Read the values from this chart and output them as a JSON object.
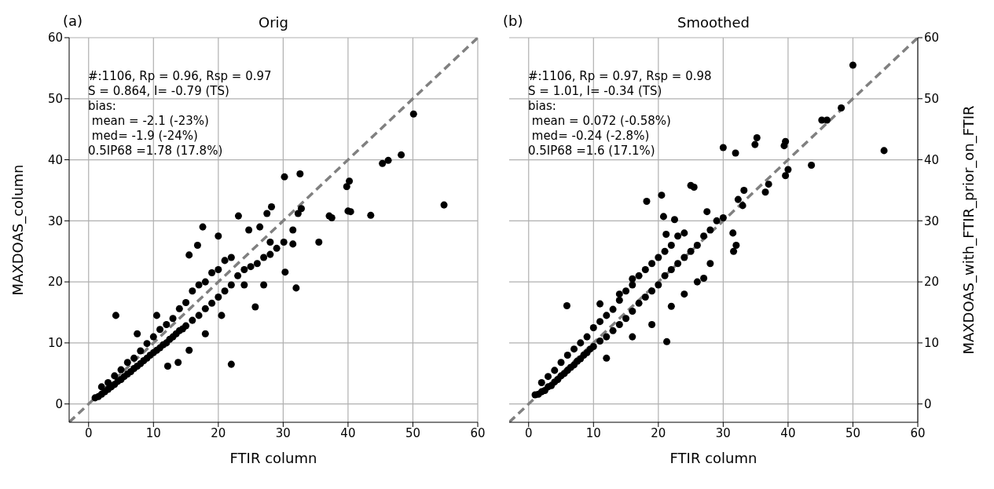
{
  "chart_data": [
    {
      "type": "scatter",
      "title": "Orig",
      "xlabel": "FTIR column",
      "ylabel": "MAXDOAS_column",
      "annotations": [
        "(a)",
        "#:1106, Rp = 0.96, Rsp = 0.97\nS = 0.864, I= -0.79 (TS)\nbias:\n mean = -2.1 (-23%)\n med= -1.9 (-24%)\n0.5IP68 =1.78 (17.8%)"
      ],
      "xlim": [
        -3,
        60
      ],
      "ylim": [
        -3,
        60
      ],
      "xticks": [
        0,
        10,
        20,
        30,
        40,
        50,
        60
      ],
      "yticks": [
        0,
        10,
        20,
        30,
        40,
        50,
        60
      ],
      "grid": true,
      "marker": "circle",
      "series": [
        {
          "color": "#000000",
          "x": [
            1,
            1.5,
            2,
            2,
            2.5,
            3,
            3,
            3.5,
            4,
            4,
            4.5,
            5,
            5,
            5.5,
            6,
            6,
            6.5,
            7,
            7,
            7.5,
            8,
            8,
            8.5,
            9,
            9,
            9.5,
            10,
            10,
            10.5,
            11,
            11,
            11.5,
            12,
            12,
            12.5,
            13,
            13,
            13.5,
            14,
            14,
            14.5,
            15,
            15,
            16,
            16,
            17,
            17,
            18,
            18,
            19,
            19,
            20,
            20,
            21,
            21,
            22,
            22,
            23,
            24,
            25,
            26,
            27,
            28,
            29,
            12.2,
            13.8,
            7.5,
            10.5,
            15.5,
            18,
            20.5,
            25.7,
            24,
            27,
            28,
            50.1,
            54.8,
            48.2,
            46.2,
            45.3,
            43.5,
            40.2,
            39.8,
            40,
            40.4,
            37.5,
            37.1,
            35.5,
            32.6,
            30.2,
            32.3,
            32.8,
            31.5,
            28.2,
            27.5,
            23.1,
            17.6,
            24.7,
            26.4,
            30.1,
            31.5,
            32,
            30.3,
            22,
            4.2,
            16.8,
            15.5,
            20
          ],
          "values": [
            1,
            1.2,
            1.6,
            2.8,
            2,
            2.4,
            3.5,
            2.8,
            3.2,
            4.6,
            3.7,
            4,
            5.6,
            4.5,
            4.9,
            6.8,
            5.3,
            5.8,
            7.5,
            6.2,
            6.6,
            8.7,
            7.1,
            7.5,
            9.9,
            8,
            8.4,
            11,
            8.8,
            9.2,
            12.2,
            9.7,
            10,
            13,
            10.6,
            11,
            14,
            11.5,
            12,
            15.6,
            12.3,
            12.8,
            16.6,
            13.7,
            18.5,
            14.5,
            19.5,
            15.6,
            20,
            16.5,
            21.5,
            17.5,
            22,
            18.5,
            23.5,
            19.5,
            24,
            21,
            22,
            22.5,
            23,
            24,
            24.5,
            25.5,
            6.2,
            6.8,
            11.5,
            14.5,
            8.8,
            11.5,
            14.5,
            15.9,
            19.5,
            19.5,
            26.5,
            47.5,
            32.6,
            40.8,
            39.9,
            39.4,
            30.9,
            36.5,
            35.6,
            31.6,
            31.5,
            30.5,
            30.8,
            26.5,
            37.7,
            37.2,
            31.2,
            32,
            28.5,
            32.3,
            31.2,
            30.8,
            29,
            28.5,
            29,
            26.5,
            26.2,
            19,
            21.6,
            6.5,
            14.5,
            26,
            24.4,
            27.5
          ]
        },
        {
          "type": "line",
          "color": "#808080",
          "line_style": "dashed",
          "marker": "none",
          "x": [
            -3,
            60
          ],
          "values": [
            -3,
            60
          ]
        }
      ]
    },
    {
      "type": "scatter",
      "title": "Smoothed",
      "xlabel": "FTIR column",
      "y2label": "MAXDOAS_with_FTIR_prior_on_FTIR",
      "annotations": [
        "(b)",
        "#:1106, Rp = 0.97, Rsp = 0.98\nS = 1.01, I= -0.34 (TS)\nbias:\n mean = 0.072 (-0.58%)\n med= -0.24 (-2.8%)\n0.5IP68 =1.6 (17.1%)"
      ],
      "xlim": [
        -3,
        60
      ],
      "y2lim": [
        -3,
        60
      ],
      "xticks": [
        0,
        10,
        20,
        30,
        40,
        50,
        60
      ],
      "y2ticks": [
        0,
        10,
        20,
        30,
        40,
        50,
        60
      ],
      "grid": true,
      "marker": "circle",
      "series": [
        {
          "axis": "y2",
          "color": "#000000",
          "x": [
            1,
            1.5,
            2,
            2,
            2.5,
            3,
            3,
            3.5,
            4,
            4,
            4.5,
            5,
            5,
            5.5,
            6,
            6,
            6.5,
            7,
            7,
            7.5,
            8,
            8,
            8.5,
            9,
            9,
            9.5,
            10,
            10,
            11,
            11,
            12,
            12,
            13,
            13,
            14,
            14,
            15,
            15,
            16,
            16,
            17,
            17,
            18,
            18,
            19,
            19,
            20,
            20,
            21,
            21,
            22,
            22,
            23,
            23,
            24,
            24,
            25,
            26,
            27,
            28,
            29,
            30,
            12,
            16,
            19,
            22,
            24,
            26,
            27,
            28,
            11,
            14,
            16,
            50,
            54.8,
            48.2,
            46,
            45.2,
            39.6,
            39.4,
            35.2,
            34.9,
            30,
            31.9,
            43.6,
            40,
            39.6,
            37,
            36.5,
            33.2,
            32.3,
            33,
            25,
            25.5,
            18.2,
            20.5,
            27.5,
            22.5,
            21.2,
            31.5,
            32,
            31.6,
            21.3,
            5.9,
            20.8
          ],
          "values": [
            1.5,
            1.6,
            2,
            3.5,
            2.2,
            2.8,
            4.5,
            3,
            3.6,
            5.5,
            4,
            4.6,
            6.8,
            5,
            5.5,
            8,
            6,
            6.4,
            9,
            7,
            7.4,
            10,
            8,
            8.4,
            11,
            9,
            9.4,
            12.5,
            10.3,
            13.5,
            11,
            14.5,
            12,
            15.5,
            13,
            17,
            14,
            18.5,
            15.2,
            19.5,
            16.5,
            21,
            17.5,
            22,
            18.5,
            23,
            19.5,
            24,
            21,
            25,
            22,
            26,
            23,
            27.5,
            24,
            28,
            25,
            26,
            27.5,
            28.5,
            30,
            30.5,
            7.5,
            11,
            13,
            16,
            18,
            20,
            20.6,
            23,
            16.4,
            18,
            20.5,
            55.5,
            41.5,
            48.5,
            46.5,
            46.5,
            43,
            42.3,
            43.6,
            42.5,
            42,
            41.1,
            39.1,
            38.4,
            37.4,
            36,
            34.7,
            35,
            33.5,
            32.5,
            35.8,
            35.5,
            33.2,
            34.2,
            31.5,
            30.2,
            27.8,
            28,
            26,
            25,
            10.2,
            16.1,
            30.7
          ]
        },
        {
          "type": "line",
          "axis": "y2",
          "color": "#808080",
          "line_style": "dashed",
          "marker": "none",
          "x": [
            -3,
            60
          ],
          "values": [
            -3,
            60
          ]
        }
      ]
    }
  ]
}
